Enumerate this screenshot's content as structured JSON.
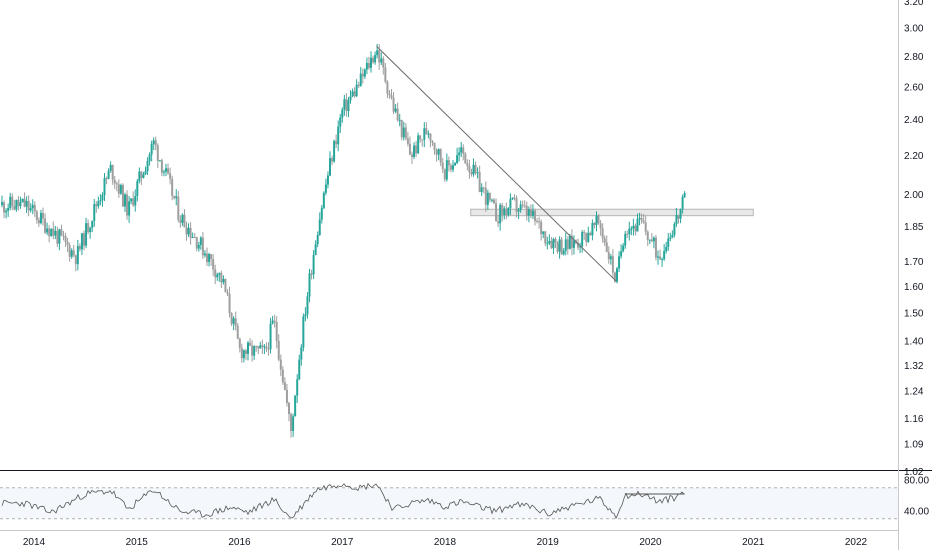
{
  "chart_data": [
    {
      "type": "candlestick",
      "panel": "price",
      "y_scale": "log",
      "y_axis_ticks": [
        "3.20",
        "3.00",
        "2.80",
        "2.60",
        "2.40",
        "2.20",
        "2.00",
        "1.85",
        "1.70",
        "1.60",
        "1.50",
        "1.40",
        "1.32",
        "1.24",
        "1.16",
        "1.09",
        "1.02"
      ],
      "x_axis_ticks": [
        "2014",
        "2015",
        "2016",
        "2017",
        "2018",
        "2019",
        "2020",
        "2021",
        "2022"
      ],
      "ylim": [
        1.02,
        3.2
      ],
      "grid": false,
      "colors": {
        "up": "#26a69a",
        "down": "#9e9e9e",
        "trendline": "#6b6b6b",
        "zone_fill": "#e6e6e6",
        "zone_stroke": "#b5b5b5"
      },
      "key_points": [
        {
          "x": "2013-12",
          "y": 1.95
        },
        {
          "x": "2014-06",
          "y": 1.72
        },
        {
          "x": "2014-10",
          "y": 2.13
        },
        {
          "x": "2014-12",
          "y": 1.92
        },
        {
          "x": "2015-03",
          "y": 2.27
        },
        {
          "x": "2015-06",
          "y": 1.9
        },
        {
          "x": "2015-09",
          "y": 1.74
        },
        {
          "x": "2015-11",
          "y": 1.62
        },
        {
          "x": "2016-01",
          "y": 1.37
        },
        {
          "x": "2016-04",
          "y": 1.36
        },
        {
          "x": "2016-05",
          "y": 1.47
        },
        {
          "x": "2016-07",
          "y": 1.12
        },
        {
          "x": "2016-10",
          "y": 1.82
        },
        {
          "x": "2017-01",
          "y": 2.45
        },
        {
          "x": "2017-03",
          "y": 2.62
        },
        {
          "x": "2017-05",
          "y": 2.85
        },
        {
          "x": "2017-07",
          "y": 2.47
        },
        {
          "x": "2017-09",
          "y": 2.2
        },
        {
          "x": "2017-11",
          "y": 2.35
        },
        {
          "x": "2018-01",
          "y": 2.12
        },
        {
          "x": "2018-03",
          "y": 2.22
        },
        {
          "x": "2018-05",
          "y": 2.05
        },
        {
          "x": "2018-07",
          "y": 1.9
        },
        {
          "x": "2018-09",
          "y": 1.95
        },
        {
          "x": "2018-11",
          "y": 1.9
        },
        {
          "x": "2019-01",
          "y": 1.8
        },
        {
          "x": "2019-03",
          "y": 1.76
        },
        {
          "x": "2019-05",
          "y": 1.8
        },
        {
          "x": "2019-07",
          "y": 1.87
        },
        {
          "x": "2019-09",
          "y": 1.62
        },
        {
          "x": "2019-10",
          "y": 1.85
        },
        {
          "x": "2019-12",
          "y": 1.86
        },
        {
          "x": "2020-02",
          "y": 1.72
        },
        {
          "x": "2020-04",
          "y": 1.88
        },
        {
          "x": "2020-05",
          "y": 1.97
        }
      ],
      "trendline": {
        "from": {
          "x": "2017-05",
          "y": 2.87
        },
        "to": {
          "x": "2019-09",
          "y": 1.62
        }
      },
      "resistance_zone": {
        "x_start": "2018-04",
        "x_end": "2021-01",
        "y_low": 1.9,
        "y_high": 1.93
      }
    },
    {
      "type": "line",
      "panel": "oscillator",
      "y_axis_ticks": [
        "80.00",
        "40.00"
      ],
      "x_axis_ticks": [
        "2014",
        "2015",
        "2016",
        "2017",
        "2018",
        "2019",
        "2020",
        "2021",
        "2022"
      ],
      "ylim": [
        25,
        95
      ],
      "band": [
        30,
        70
      ],
      "colors": {
        "line": "#555555",
        "band_fill": "#f4f8fc",
        "band_edge": "#b0b0b0",
        "level": "#555555"
      },
      "level_line": {
        "x_start": "2019-10",
        "x_end": "2020-05",
        "y": 62
      },
      "key_points": [
        {
          "x": "2013-12",
          "y": 50
        },
        {
          "x": "2014-03",
          "y": 38
        },
        {
          "x": "2014-07",
          "y": 62
        },
        {
          "x": "2014-10",
          "y": 66
        },
        {
          "x": "2014-12",
          "y": 42
        },
        {
          "x": "2015-03",
          "y": 68
        },
        {
          "x": "2015-06",
          "y": 40
        },
        {
          "x": "2015-09",
          "y": 35
        },
        {
          "x": "2015-12",
          "y": 45
        },
        {
          "x": "2016-02",
          "y": 38
        },
        {
          "x": "2016-05",
          "y": 55
        },
        {
          "x": "2016-07",
          "y": 30
        },
        {
          "x": "2016-10",
          "y": 68
        },
        {
          "x": "2017-01",
          "y": 76
        },
        {
          "x": "2017-03",
          "y": 70
        },
        {
          "x": "2017-05",
          "y": 75
        },
        {
          "x": "2017-07",
          "y": 42
        },
        {
          "x": "2017-09",
          "y": 50
        },
        {
          "x": "2017-11",
          "y": 54
        },
        {
          "x": "2018-01",
          "y": 46
        },
        {
          "x": "2018-03",
          "y": 52
        },
        {
          "x": "2018-05",
          "y": 45
        },
        {
          "x": "2018-07",
          "y": 40
        },
        {
          "x": "2018-09",
          "y": 48
        },
        {
          "x": "2018-11",
          "y": 46
        },
        {
          "x": "2019-01",
          "y": 36
        },
        {
          "x": "2019-03",
          "y": 44
        },
        {
          "x": "2019-05",
          "y": 50
        },
        {
          "x": "2019-07",
          "y": 56
        },
        {
          "x": "2019-09",
          "y": 34
        },
        {
          "x": "2019-10",
          "y": 60
        },
        {
          "x": "2019-12",
          "y": 62
        },
        {
          "x": "2020-02",
          "y": 52
        },
        {
          "x": "2020-04",
          "y": 58
        },
        {
          "x": "2020-05",
          "y": 66
        }
      ]
    }
  ]
}
